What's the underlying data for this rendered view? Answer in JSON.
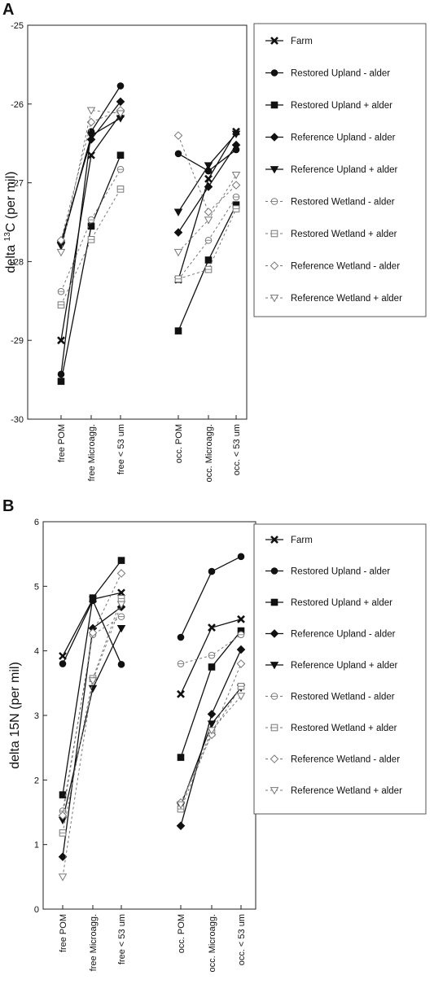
{
  "legend_entries": [
    "Farm",
    "Restored Upland - alder",
    "Restored Upland + alder",
    "Reference Upland - alder",
    "Reference Upland + alder",
    "Restored Wetland - alder",
    "Restored Wetland + alder",
    "Reference Wetland - alder",
    "Reference Wetland + alder"
  ],
  "chart_data": [
    {
      "type": "line",
      "panel_label": "A",
      "ylabel_prefix": "delta ",
      "ylabel_sup": "13",
      "ylabel_suffix": "C (per mil)",
      "ylim": [
        -30,
        -25
      ],
      "yticks": [
        "-30",
        "-29",
        "-28",
        "-27",
        "-26",
        "-25"
      ],
      "categories": [
        "free POM",
        "free Microagg.",
        "free < 53 um",
        "occ. POM",
        "occ. Microagg.",
        "occ. < 53 um"
      ],
      "grid": false,
      "legend_position": "right",
      "series": [
        {
          "name": "Farm",
          "marker": "x",
          "style": "solid",
          "filled": true,
          "values": [
            -29.0,
            -26.65,
            -26.13,
            -28.23,
            -26.95,
            -26.35
          ]
        },
        {
          "name": "Restored Upland - alder",
          "marker": "circle",
          "style": "solid",
          "filled": true,
          "values": [
            -29.43,
            -26.35,
            -25.77,
            -26.63,
            -26.85,
            -26.58
          ]
        },
        {
          "name": "Restored Upland + alder",
          "marker": "square",
          "style": "solid",
          "filled": true,
          "values": [
            -29.52,
            -27.55,
            -26.65,
            -28.88,
            -27.98,
            -27.28
          ]
        },
        {
          "name": "Reference Upland - alder",
          "marker": "diamond",
          "style": "solid",
          "filled": true,
          "values": [
            -27.75,
            -26.45,
            -25.97,
            -27.63,
            -27.05,
            -26.52
          ]
        },
        {
          "name": "Reference Upland + alder",
          "marker": "triangle-down",
          "style": "solid",
          "filled": true,
          "values": [
            -27.8,
            -26.4,
            -26.18,
            -27.37,
            -26.78,
            -26.38
          ]
        },
        {
          "name": "Restored Wetland - alder",
          "marker": "circle",
          "style": "dashed",
          "filled": false,
          "values": [
            -28.38,
            -27.47,
            -26.83,
            -28.23,
            -27.73,
            -27.18
          ]
        },
        {
          "name": "Restored Wetland + alder",
          "marker": "square",
          "style": "dashed",
          "filled": false,
          "values": [
            -28.55,
            -27.72,
            -27.08,
            -28.22,
            -28.1,
            -27.33
          ]
        },
        {
          "name": "Reference Wetland - alder",
          "marker": "diamond",
          "style": "dashed",
          "filled": false,
          "values": [
            -27.73,
            -26.23,
            -26.08,
            -26.4,
            -27.37,
            -27.03
          ]
        },
        {
          "name": "Reference Wetland + alder",
          "marker": "triangle-down",
          "style": "dashed",
          "filled": false,
          "values": [
            -27.88,
            -26.08,
            -26.12,
            -27.88,
            -27.47,
            -26.9
          ]
        }
      ]
    },
    {
      "type": "line",
      "panel_label": "B",
      "ylabel_prefix": "delta 15N (per mil)",
      "ylabel_sup": "",
      "ylabel_suffix": "",
      "ylim": [
        0,
        6
      ],
      "yticks": [
        "0",
        "1",
        "2",
        "3",
        "4",
        "5",
        "6"
      ],
      "categories": [
        "free POM",
        "free Microagg.",
        "free < 53 um",
        "occ. POM",
        "occ. Microagg.",
        "occ. < 53 um"
      ],
      "grid": false,
      "legend_position": "right",
      "series": [
        {
          "name": "Farm",
          "marker": "x",
          "style": "solid",
          "filled": true,
          "values": [
            3.92,
            4.8,
            4.9,
            3.33,
            4.36,
            4.49
          ]
        },
        {
          "name": "Restored Upland - alder",
          "marker": "circle",
          "style": "solid",
          "filled": true,
          "values": [
            3.8,
            4.78,
            3.79,
            4.21,
            5.23,
            5.46
          ]
        },
        {
          "name": "Restored Upland + alder",
          "marker": "square",
          "style": "solid",
          "filled": true,
          "values": [
            1.77,
            4.82,
            5.4,
            2.35,
            3.75,
            4.31
          ]
        },
        {
          "name": "Reference Upland - alder",
          "marker": "diamond",
          "style": "solid",
          "filled": true,
          "values": [
            0.81,
            4.35,
            4.68,
            1.29,
            3.02,
            4.02
          ]
        },
        {
          "name": "Reference Upland + alder",
          "marker": "triangle-down",
          "style": "solid",
          "filled": true,
          "values": [
            1.38,
            3.42,
            4.35,
            1.6,
            2.87,
            3.43
          ]
        },
        {
          "name": "Restored Wetland - alder",
          "marker": "circle",
          "style": "dashed",
          "filled": false,
          "values": [
            1.52,
            4.25,
            4.53,
            3.8,
            3.93,
            4.25
          ]
        },
        {
          "name": "Restored Wetland + alder",
          "marker": "square",
          "style": "dashed",
          "filled": false,
          "values": [
            1.18,
            3.57,
            4.81,
            1.55,
            2.73,
            3.45
          ]
        },
        {
          "name": "Reference Wetland - alder",
          "marker": "diamond",
          "style": "dashed",
          "filled": false,
          "values": [
            1.45,
            4.28,
            5.2,
            1.65,
            2.7,
            3.8
          ]
        },
        {
          "name": "Reference Wetland + alder",
          "marker": "triangle-down",
          "style": "dashed",
          "filled": false,
          "values": [
            0.5,
            3.54,
            4.72,
            1.62,
            2.77,
            3.3
          ]
        }
      ]
    }
  ]
}
